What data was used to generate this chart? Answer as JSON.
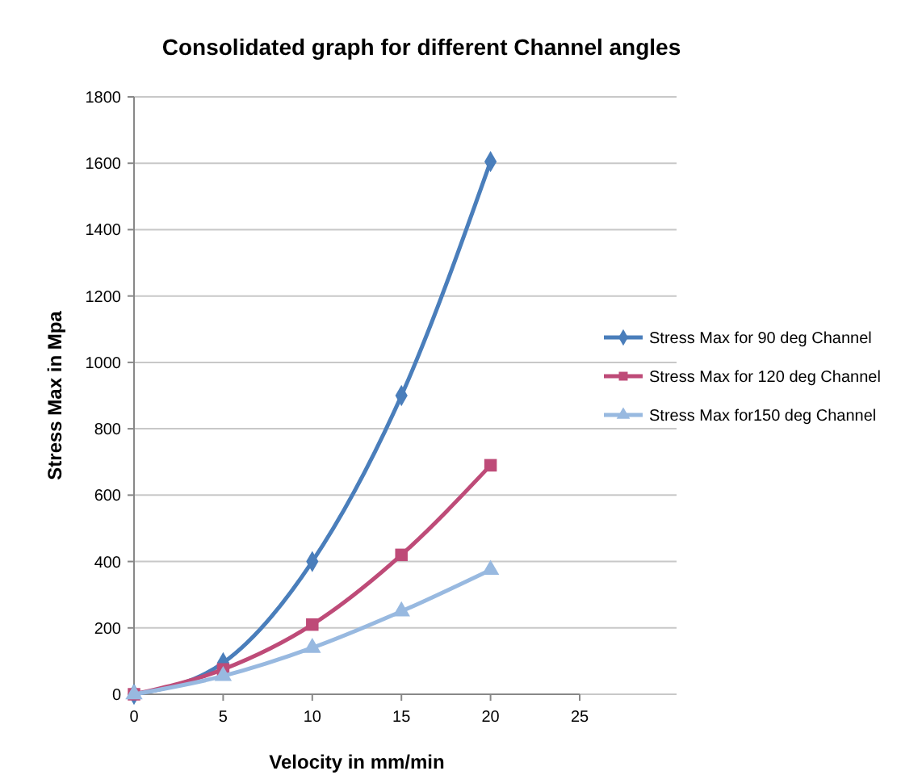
{
  "chart_data": {
    "type": "line",
    "title": "Consolidated graph for different Channel angles",
    "xlabel": "Velocity in mm/min",
    "ylabel": "Stress Max in Mpa",
    "x": [
      0,
      5,
      10,
      15,
      20
    ],
    "series": [
      {
        "name": "Stress Max for 90 deg Channel",
        "color": "#4a7ebb",
        "marker": "diamond",
        "values": [
          0,
          95,
          400,
          900,
          1605
        ]
      },
      {
        "name": "Stress Max for 120 deg Channel",
        "color": "#be4b78",
        "marker": "square",
        "values": [
          0,
          75,
          210,
          420,
          690
        ]
      },
      {
        "name": "Stress Max for150 deg Channel",
        "color": "#98b9e0",
        "marker": "triangle",
        "values": [
          0,
          55,
          140,
          250,
          375
        ]
      }
    ],
    "xlim": [
      0,
      25
    ],
    "xticks": [
      0,
      5,
      10,
      15,
      20,
      25
    ],
    "ylim": [
      0,
      1800
    ],
    "yticks": [
      0,
      200,
      400,
      600,
      800,
      1000,
      1200,
      1400,
      1600,
      1800
    ],
    "grid": "y",
    "legend": "right",
    "line_style": "solid"
  }
}
